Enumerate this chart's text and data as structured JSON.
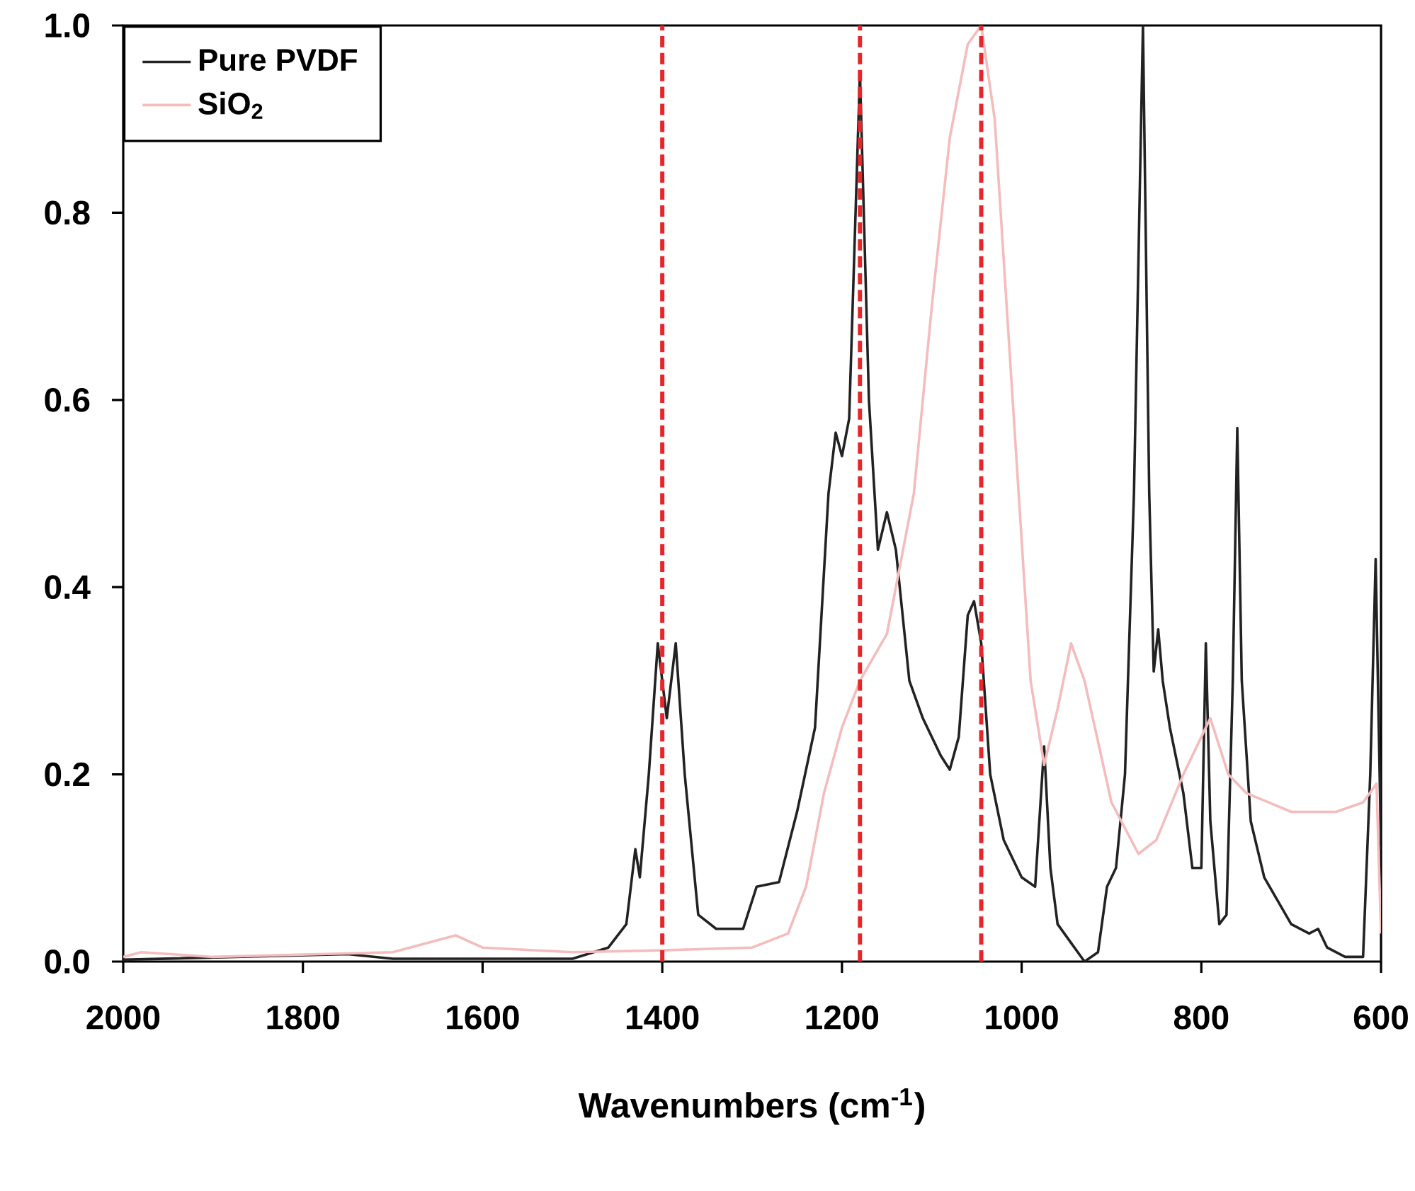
{
  "chart_data": {
    "type": "line",
    "xlabel": "Wavenumbers (cm$^{-1}$)",
    "xlim": [
      2000,
      600
    ],
    "xticks": [
      2000,
      1800,
      1600,
      1400,
      1200,
      1000,
      800,
      600
    ],
    "ylim": [
      0,
      1
    ],
    "yticks": [
      {
        "value": 0,
        "label": "0.0"
      },
      {
        "value": 0.2,
        "label": "0.2"
      },
      {
        "value": 0.4,
        "label": "0.4"
      },
      {
        "value": 0.6,
        "label": "0.6"
      },
      {
        "value": 0.8,
        "label": "0.8"
      },
      {
        "value": 1,
        "label": "1.0"
      }
    ],
    "legend": "top left",
    "marker": "none",
    "line_style": "solid",
    "series": [
      {
        "name": "Pure PVDF",
        "color": "#222222",
        "x": [
          2000,
          1750,
          1700,
          1500,
          1460,
          1440,
          1430,
          1425,
          1415,
          1405,
          1395,
          1385,
          1375,
          1360,
          1340,
          1310,
          1295,
          1270,
          1250,
          1230,
          1215,
          1207,
          1200,
          1192,
          1180,
          1170,
          1160,
          1150,
          1140,
          1125,
          1110,
          1090,
          1080,
          1070,
          1060,
          1053,
          1045,
          1035,
          1020,
          1000,
          985,
          975,
          968,
          960,
          945,
          930,
          915,
          905,
          895,
          885,
          875,
          865,
          858,
          853,
          848,
          843,
          835,
          820,
          810,
          800,
          795,
          790,
          780,
          772,
          765,
          760,
          755,
          745,
          730,
          700,
          680,
          670,
          660,
          640,
          620,
          612,
          606,
          600
        ],
        "values": [
          0.002,
          0.008,
          0.003,
          0.003,
          0.015,
          0.04,
          0.12,
          0.09,
          0.2,
          0.34,
          0.26,
          0.34,
          0.2,
          0.05,
          0.035,
          0.035,
          0.08,
          0.085,
          0.16,
          0.25,
          0.5,
          0.565,
          0.54,
          0.58,
          0.95,
          0.6,
          0.44,
          0.48,
          0.44,
          0.3,
          0.26,
          0.22,
          0.205,
          0.24,
          0.37,
          0.385,
          0.34,
          0.2,
          0.13,
          0.09,
          0.08,
          0.23,
          0.1,
          0.04,
          0.02,
          0.0,
          0.01,
          0.08,
          0.1,
          0.2,
          0.5,
          1.0,
          0.5,
          0.31,
          0.355,
          0.3,
          0.25,
          0.18,
          0.1,
          0.1,
          0.34,
          0.15,
          0.04,
          0.05,
          0.3,
          0.57,
          0.3,
          0.15,
          0.09,
          0.04,
          0.03,
          0.035,
          0.015,
          0.005,
          0.005,
          0.2,
          0.43,
          0.12
        ]
      },
      {
        "name": "SiO$_{2}$",
        "color": "#f4bcbc",
        "x": [
          2000,
          1980,
          1900,
          1700,
          1630,
          1600,
          1500,
          1400,
          1300,
          1260,
          1240,
          1220,
          1200,
          1180,
          1150,
          1120,
          1100,
          1080,
          1060,
          1045,
          1030,
          1010,
          990,
          975,
          960,
          945,
          930,
          900,
          870,
          850,
          820,
          790,
          770,
          750,
          700,
          650,
          620,
          605,
          600
        ],
        "values": [
          0.005,
          0.01,
          0.005,
          0.01,
          0.028,
          0.015,
          0.01,
          0.012,
          0.015,
          0.03,
          0.08,
          0.18,
          0.25,
          0.3,
          0.35,
          0.5,
          0.7,
          0.88,
          0.98,
          1.0,
          0.9,
          0.6,
          0.3,
          0.21,
          0.27,
          0.34,
          0.3,
          0.17,
          0.115,
          0.13,
          0.2,
          0.26,
          0.2,
          0.18,
          0.16,
          0.16,
          0.17,
          0.19,
          0.03
        ]
      }
    ],
    "ref_lines": [
      {
        "axis": "x",
        "value": 1400,
        "color": "#e8262a",
        "line_style": "dashed"
      },
      {
        "axis": "x",
        "value": 1180,
        "color": "#e8262a",
        "line_style": "dashed"
      },
      {
        "axis": "x",
        "value": 1045,
        "color": "#e8262a",
        "line_style": "dashed"
      }
    ]
  }
}
